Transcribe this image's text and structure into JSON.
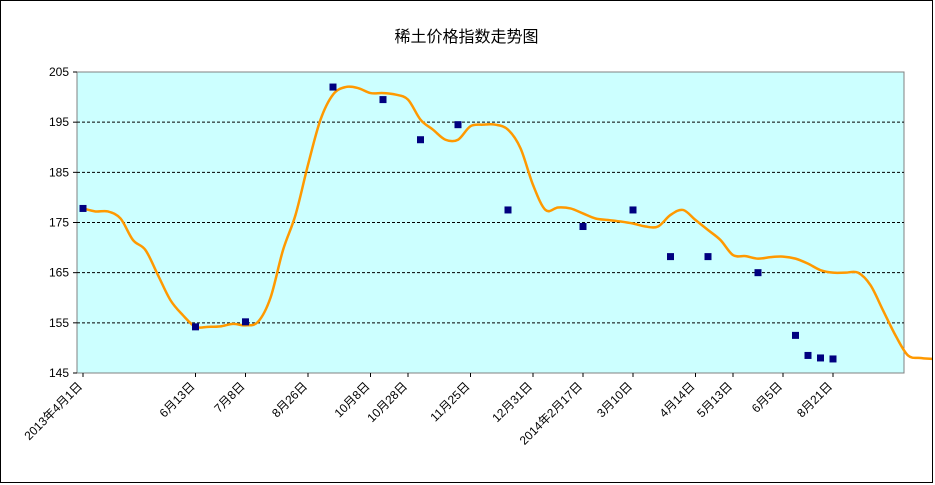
{
  "chart_data": {
    "type": "line",
    "title": "稀土价格指数走势图",
    "xlabel": "",
    "ylabel": "",
    "ylim": [
      145,
      205
    ],
    "yticks": [
      205,
      195,
      185,
      175,
      165,
      155,
      145
    ],
    "grid": "horizontal dashed",
    "colors": {
      "plot_bg": "#ccffff",
      "line": "#ff9900",
      "marker": "#000080"
    },
    "series": [
      {
        "values": [
          177.8,
          177.2,
          177.2,
          175.8,
          171.5,
          169.5,
          164.5,
          159.5,
          156.5,
          154.2,
          154.2,
          154.3,
          154.8,
          154.5,
          155.2,
          160,
          169.5,
          176.5,
          186.5,
          195.5,
          200.5,
          202,
          201.8,
          200.8,
          200.8,
          200.5,
          199.5,
          195.5,
          193.5,
          191.5,
          191.5,
          194.2,
          194.5,
          194.5,
          193.5,
          189.8,
          182.5,
          177.5,
          178,
          177.8,
          176.8,
          175.8,
          175.5,
          175.2,
          174.8,
          174.2,
          174.2,
          176.5,
          177.5,
          175.5,
          173.5,
          171.5,
          168.5,
          168.3,
          167.8,
          168.1,
          168.2,
          167.8,
          166.8,
          165.5,
          165,
          165,
          165,
          162.5,
          157.5,
          152.5,
          148.5,
          148,
          147.8,
          147.5
        ],
        "markers": [
          [
            0,
            177.8
          ],
          [
            9,
            154.2
          ],
          [
            13,
            155.2
          ],
          [
            20,
            202
          ],
          [
            24,
            199.5
          ],
          [
            27,
            191.5
          ],
          [
            30,
            194.5
          ],
          [
            34,
            177.5
          ],
          [
            40,
            174.2
          ],
          [
            44,
            177.5
          ],
          [
            47,
            168.2
          ],
          [
            50,
            168.2
          ],
          [
            54,
            165
          ],
          [
            57,
            152.5
          ],
          [
            58,
            148.5
          ],
          [
            59,
            148
          ],
          [
            60,
            147.8
          ]
        ]
      }
    ],
    "xticks": [
      {
        "i": 0,
        "label": "2013年4月1日"
      },
      {
        "i": 9,
        "label": "6月13日"
      },
      {
        "i": 13,
        "label": "7月8日"
      },
      {
        "i": 18,
        "label": "8月26日"
      },
      {
        "i": 23,
        "label": "10月8日"
      },
      {
        "i": 26,
        "label": "10月28日"
      },
      {
        "i": 31,
        "label": "11月25日"
      },
      {
        "i": 36,
        "label": "12月31日"
      },
      {
        "i": 40,
        "label": "2014年2月17日"
      },
      {
        "i": 44,
        "label": "3月10日"
      },
      {
        "i": 49,
        "label": "4月14日"
      },
      {
        "i": 52,
        "label": "5月13日"
      },
      {
        "i": 56,
        "label": "6月5日"
      },
      {
        "i": 60,
        "label": "8月21日"
      }
    ]
  }
}
